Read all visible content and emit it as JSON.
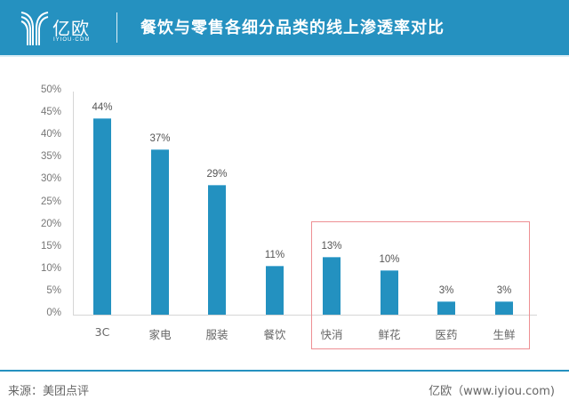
{
  "header": {
    "logo_cn": "亿欧",
    "logo_en": "IYIOU·COM",
    "title": "餐饮与零售各细分品类的线上渗透率对比",
    "background_color": "#2591c0"
  },
  "footer": {
    "source": "来源：美团点评",
    "credit": "亿欧（www.iyiou.com)"
  },
  "chart_data": {
    "type": "bar",
    "title": "餐饮与零售各细分品类的线上渗透率对比",
    "xlabel": "",
    "ylabel": "",
    "categories": [
      "3C",
      "家电",
      "服装",
      "餐饮",
      "快消",
      "鲜花",
      "医药",
      "生鲜"
    ],
    "values": [
      44,
      37,
      29,
      11,
      13,
      10,
      3,
      3
    ],
    "value_labels": [
      "44%",
      "37%",
      "29%",
      "11%",
      "13%",
      "10%",
      "3%",
      "3%"
    ],
    "ylim": [
      0,
      50
    ],
    "yticks": [
      "0%",
      "5%",
      "10%",
      "15%",
      "20%",
      "25%",
      "30%",
      "35%",
      "40%",
      "45%",
      "50%"
    ],
    "grid": false,
    "legend": null,
    "bar_color": "#2391c0",
    "annotations": [
      {
        "type": "highlight-box",
        "covers_categories": [
          "快消",
          "鲜花",
          "医药",
          "生鲜"
        ],
        "color": "#ee8f93"
      }
    ]
  }
}
